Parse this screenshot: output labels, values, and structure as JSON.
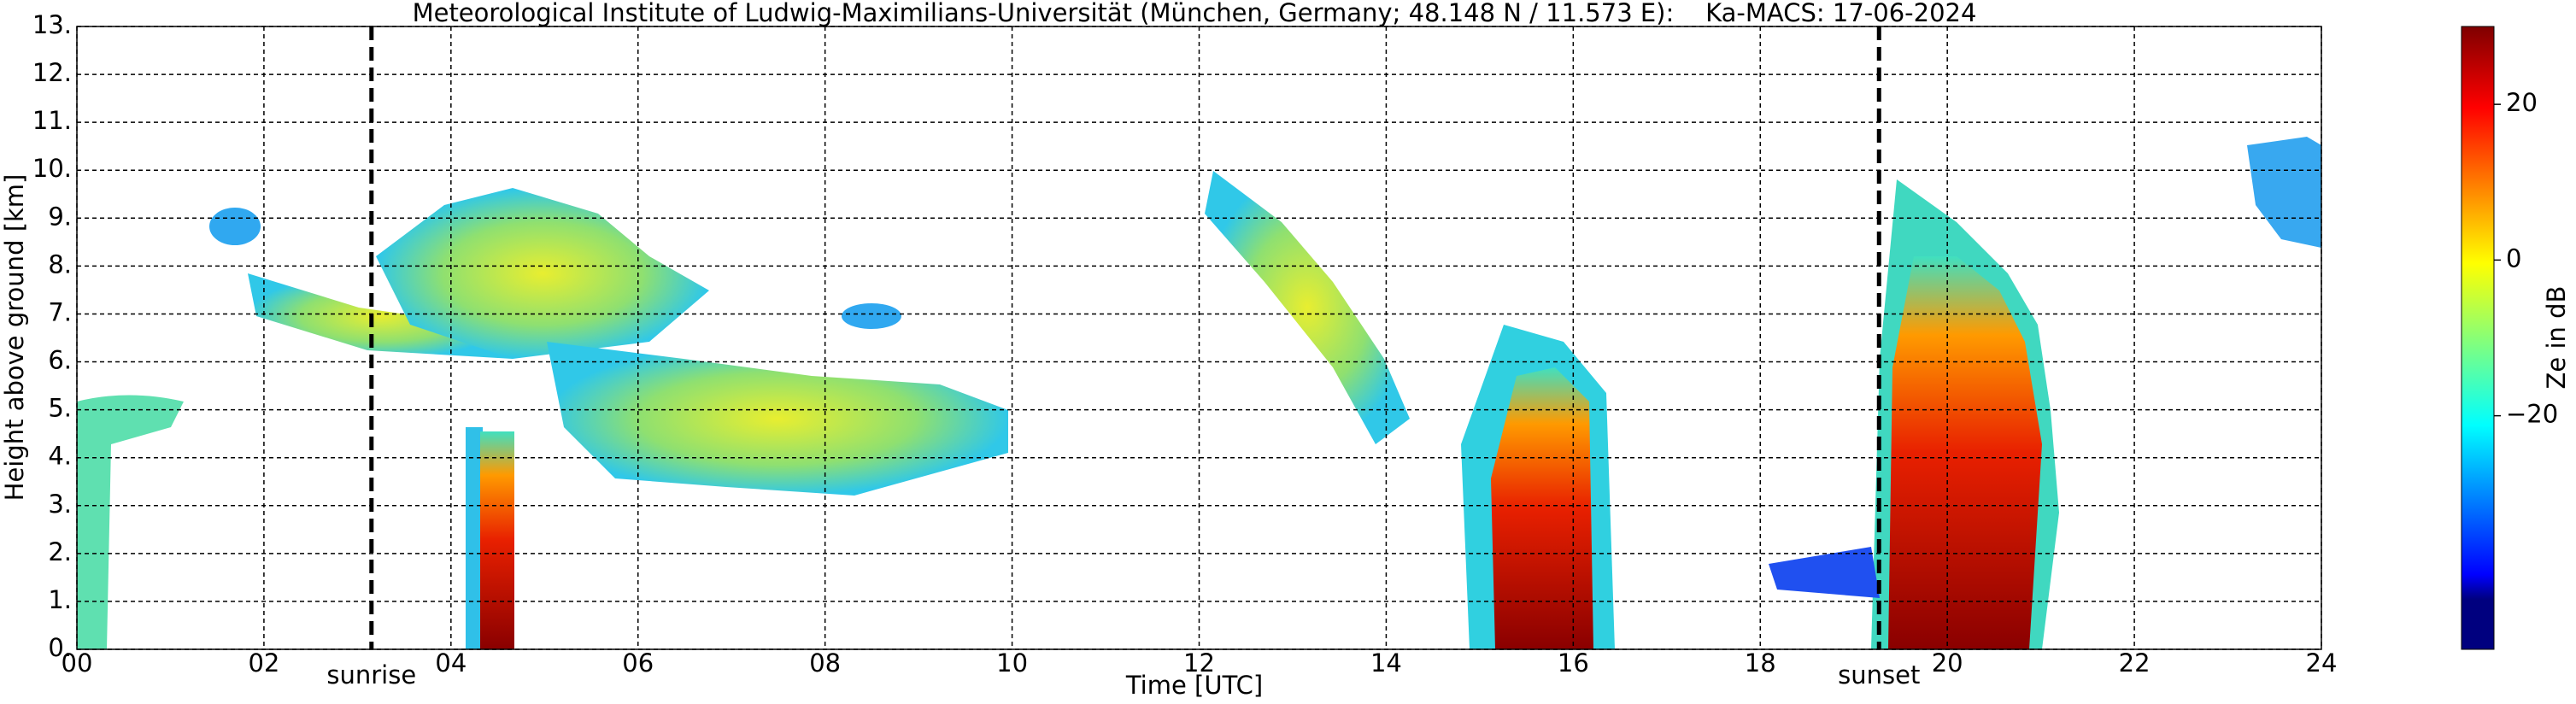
{
  "chart_data": {
    "type": "heatmap",
    "title": "Meteorological Institute of Ludwig-Maximilians-Universität (München, Germany; 48.148 N / 11.573 E):    Ka-MACS: 17-06-2024",
    "xlabel": "Time [UTC]",
    "ylabel": "Height above ground [km]",
    "xlim": [
      0,
      24
    ],
    "xticks": [
      {
        "value": 0,
        "label": "00"
      },
      {
        "value": 2,
        "label": "02"
      },
      {
        "value": 4,
        "label": "04"
      },
      {
        "value": 6,
        "label": "06"
      },
      {
        "value": 8,
        "label": "08"
      },
      {
        "value": 10,
        "label": "10"
      },
      {
        "value": 12,
        "label": "12"
      },
      {
        "value": 14,
        "label": "14"
      },
      {
        "value": 16,
        "label": "16"
      },
      {
        "value": 18,
        "label": "18"
      },
      {
        "value": 20,
        "label": "20"
      },
      {
        "value": 22,
        "label": "22"
      },
      {
        "value": 24,
        "label": "24"
      }
    ],
    "ylim": [
      0,
      13
    ],
    "yticks": [
      {
        "value": 0,
        "label": "0."
      },
      {
        "value": 1,
        "label": "1."
      },
      {
        "value": 2,
        "label": "2."
      },
      {
        "value": 3,
        "label": "3."
      },
      {
        "value": 4,
        "label": "4."
      },
      {
        "value": 5,
        "label": "5."
      },
      {
        "value": 6,
        "label": "6."
      },
      {
        "value": 7,
        "label": "7."
      },
      {
        "value": 8,
        "label": "8."
      },
      {
        "value": 9,
        "label": "9."
      },
      {
        "value": 10,
        "label": "10."
      },
      {
        "value": 11,
        "label": "11."
      },
      {
        "value": 12,
        "label": "12."
      },
      {
        "value": 13,
        "label": "13."
      }
    ],
    "colorbar": {
      "label": "Ze in dB",
      "lim": [
        -50,
        30
      ],
      "ticks": [
        20,
        0,
        {
          "value": -20,
          "label": "−20"
        }
      ]
    },
    "annotations": [
      {
        "x": 3.15,
        "text": "sunrise"
      },
      {
        "x": 19.27,
        "text": "sunset"
      }
    ],
    "grid": true
  }
}
